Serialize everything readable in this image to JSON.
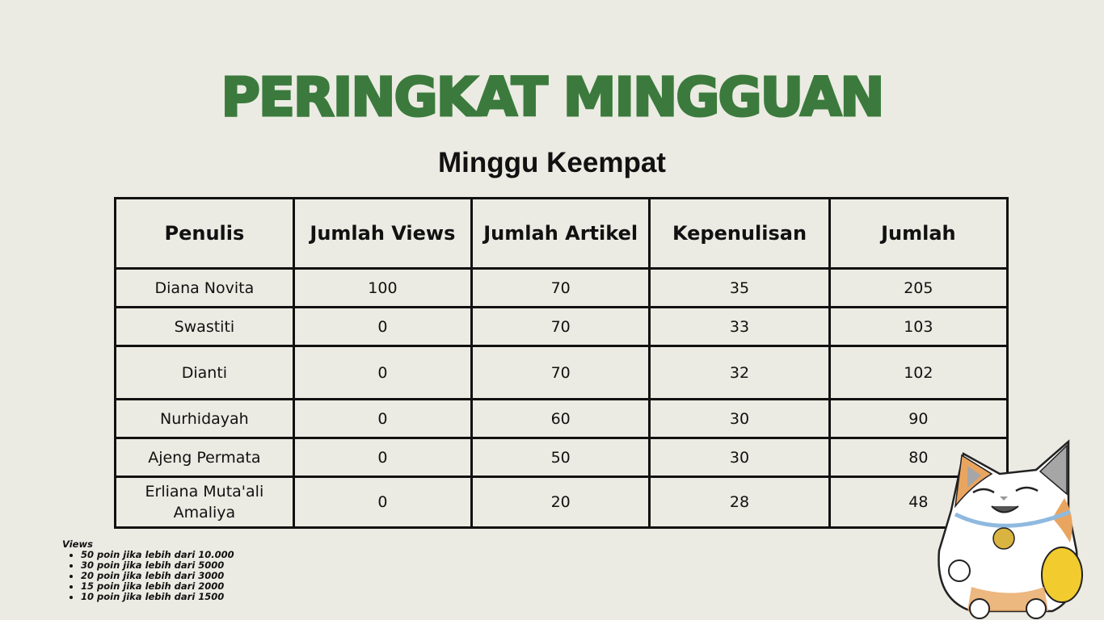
{
  "title": "Peringkat Mingguan",
  "subtitle": "Minggu Keempat",
  "table": {
    "headers": [
      "Penulis",
      "Jumlah Views",
      "Jumlah Artikel",
      "Kepenulisan",
      "Jumlah"
    ],
    "rows": [
      [
        "Diana Novita",
        "100",
        "70",
        "35",
        "205"
      ],
      [
        "Swastiti",
        "0",
        "70",
        "33",
        "103"
      ],
      [
        "Dianti",
        "0",
        "70",
        "32",
        "102"
      ],
      [
        "Nurhidayah",
        "0",
        "60",
        "30",
        "90"
      ],
      [
        "Ajeng Permata",
        "0",
        "50",
        "30",
        "80"
      ],
      [
        "Erliana Muta'ali Amaliya",
        "0",
        "20",
        "28",
        "48"
      ]
    ]
  },
  "notes": {
    "heading": "Views",
    "items": [
      "50 poin jika lebih dari 10.000",
      "30 poin jika lebih dari 5000",
      "20 poin jika lebih dari 3000",
      "15 poin jika lebih dari 2000",
      "10 poin jika lebih dari 1500"
    ]
  },
  "colors": {
    "background": "#ebebe3",
    "title": "#3b7a3c"
  },
  "decoration": "lucky-cat-illustration"
}
